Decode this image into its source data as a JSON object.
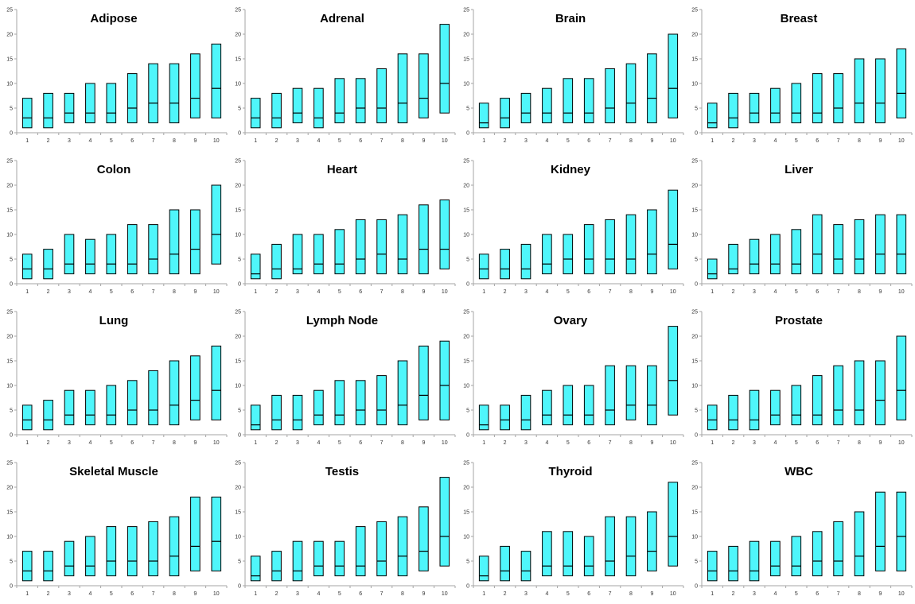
{
  "colors": {
    "box_fill": "#4ff6fb",
    "box_stroke": "#000000",
    "axis": "#a6a6a6"
  },
  "chart_data": [
    {
      "type": "box",
      "title": "Adipose",
      "categories": [
        "1",
        "2",
        "3",
        "4",
        "5",
        "6",
        "7",
        "8",
        "9",
        "10"
      ],
      "ylim": [
        0,
        25
      ],
      "yticks": [
        "0",
        "5",
        "10",
        "15",
        "20",
        "25"
      ],
      "low": [
        1,
        1,
        2,
        2,
        2,
        2,
        2,
        2,
        3,
        3
      ],
      "median": [
        3,
        3,
        4,
        4,
        4,
        5,
        6,
        6,
        7,
        9
      ],
      "high": [
        7,
        8,
        8,
        10,
        10,
        12,
        14,
        14,
        16,
        18
      ]
    },
    {
      "type": "box",
      "title": "Adrenal",
      "categories": [
        "1",
        "2",
        "3",
        "4",
        "5",
        "6",
        "7",
        "8",
        "9",
        "10"
      ],
      "ylim": [
        0,
        25
      ],
      "yticks": [
        "0",
        "5",
        "10",
        "15",
        "20",
        "25"
      ],
      "low": [
        1,
        1,
        2,
        1,
        2,
        2,
        2,
        2,
        3,
        4
      ],
      "median": [
        3,
        3,
        4,
        3,
        4,
        5,
        5,
        6,
        7,
        10
      ],
      "high": [
        7,
        8,
        9,
        9,
        11,
        11,
        13,
        16,
        16,
        22
      ]
    },
    {
      "type": "box",
      "title": "Brain",
      "categories": [
        "1",
        "2",
        "3",
        "4",
        "5",
        "6",
        "7",
        "8",
        "9",
        "10"
      ],
      "ylim": [
        0,
        25
      ],
      "yticks": [
        "0",
        "5",
        "10",
        "15",
        "20",
        "25"
      ],
      "low": [
        1,
        1,
        2,
        2,
        2,
        2,
        2,
        2,
        2,
        3
      ],
      "median": [
        2,
        3,
        4,
        4,
        4,
        4,
        5,
        6,
        7,
        9
      ],
      "high": [
        6,
        7,
        8,
        9,
        11,
        11,
        13,
        14,
        16,
        20
      ]
    },
    {
      "type": "box",
      "title": "Breast",
      "categories": [
        "1",
        "2",
        "3",
        "4",
        "5",
        "6",
        "7",
        "8",
        "9",
        "10"
      ],
      "ylim": [
        0,
        25
      ],
      "yticks": [
        "0",
        "5",
        "10",
        "15",
        "20",
        "25"
      ],
      "low": [
        1,
        1,
        2,
        2,
        2,
        2,
        2,
        2,
        2,
        3
      ],
      "median": [
        2,
        3,
        4,
        4,
        4,
        4,
        5,
        6,
        6,
        8
      ],
      "high": [
        6,
        8,
        8,
        9,
        10,
        12,
        12,
        15,
        15,
        17
      ]
    },
    {
      "type": "box",
      "title": "Colon",
      "categories": [
        "1",
        "2",
        "3",
        "4",
        "5",
        "6",
        "7",
        "8",
        "9",
        "10"
      ],
      "ylim": [
        0,
        25
      ],
      "yticks": [
        "0",
        "5",
        "10",
        "15",
        "20",
        "25"
      ],
      "low": [
        1,
        1,
        2,
        2,
        2,
        2,
        2,
        2,
        2,
        4
      ],
      "median": [
        3,
        3,
        4,
        4,
        4,
        4,
        5,
        6,
        7,
        10
      ],
      "high": [
        6,
        7,
        10,
        9,
        10,
        12,
        12,
        15,
        15,
        20
      ]
    },
    {
      "type": "box",
      "title": "Heart",
      "categories": [
        "1",
        "2",
        "3",
        "4",
        "5",
        "6",
        "7",
        "8",
        "9",
        "10"
      ],
      "ylim": [
        0,
        25
      ],
      "yticks": [
        "0",
        "5",
        "10",
        "15",
        "20",
        "25"
      ],
      "low": [
        1,
        1,
        2,
        2,
        2,
        2,
        2,
        2,
        2,
        3
      ],
      "median": [
        2,
        3,
        3,
        4,
        4,
        5,
        6,
        5,
        7,
        7
      ],
      "high": [
        6,
        8,
        10,
        10,
        11,
        13,
        13,
        14,
        16,
        17
      ]
    },
    {
      "type": "box",
      "title": "Kidney",
      "categories": [
        "1",
        "2",
        "3",
        "4",
        "5",
        "6",
        "7",
        "8",
        "9",
        "10"
      ],
      "ylim": [
        0,
        25
      ],
      "yticks": [
        "0",
        "5",
        "10",
        "15",
        "20",
        "25"
      ],
      "low": [
        1,
        1,
        1,
        2,
        2,
        2,
        2,
        2,
        2,
        3
      ],
      "median": [
        3,
        3,
        3,
        4,
        5,
        5,
        5,
        5,
        6,
        8
      ],
      "high": [
        6,
        7,
        8,
        10,
        10,
        12,
        13,
        14,
        15,
        19
      ]
    },
    {
      "type": "box",
      "title": "Liver",
      "categories": [
        "1",
        "2",
        "3",
        "4",
        "5",
        "6",
        "7",
        "8",
        "9",
        "10"
      ],
      "ylim": [
        0,
        25
      ],
      "yticks": [
        "0",
        "5",
        "10",
        "15",
        "20",
        "25"
      ],
      "low": [
        1,
        2,
        2,
        2,
        2,
        2,
        2,
        2,
        2,
        2
      ],
      "median": [
        2,
        3,
        4,
        4,
        4,
        6,
        5,
        5,
        6,
        6
      ],
      "high": [
        5,
        8,
        9,
        10,
        11,
        14,
        12,
        13,
        14,
        14
      ]
    },
    {
      "type": "box",
      "title": "Lung",
      "categories": [
        "1",
        "2",
        "3",
        "4",
        "5",
        "6",
        "7",
        "8",
        "9",
        "10"
      ],
      "ylim": [
        0,
        25
      ],
      "yticks": [
        "0",
        "5",
        "10",
        "15",
        "20",
        "25"
      ],
      "low": [
        1,
        1,
        2,
        2,
        2,
        2,
        2,
        2,
        3,
        3
      ],
      "median": [
        3,
        3,
        4,
        4,
        4,
        5,
        5,
        6,
        7,
        9
      ],
      "high": [
        6,
        7,
        9,
        9,
        10,
        11,
        13,
        15,
        16,
        18
      ]
    },
    {
      "type": "box",
      "title": "Lymph Node",
      "categories": [
        "1",
        "2",
        "3",
        "4",
        "5",
        "6",
        "7",
        "8",
        "9",
        "10"
      ],
      "ylim": [
        0,
        25
      ],
      "yticks": [
        "0",
        "5",
        "10",
        "15",
        "20",
        "25"
      ],
      "low": [
        1,
        1,
        1,
        2,
        2,
        2,
        2,
        2,
        3,
        3
      ],
      "median": [
        2,
        3,
        3,
        4,
        4,
        5,
        5,
        6,
        8,
        10
      ],
      "high": [
        6,
        8,
        8,
        9,
        11,
        11,
        12,
        15,
        18,
        19
      ]
    },
    {
      "type": "box",
      "title": "Ovary",
      "categories": [
        "1",
        "2",
        "3",
        "4",
        "5",
        "6",
        "7",
        "8",
        "9",
        "10"
      ],
      "ylim": [
        0,
        25
      ],
      "yticks": [
        "0",
        "5",
        "10",
        "15",
        "20",
        "25"
      ],
      "low": [
        1,
        1,
        1,
        2,
        2,
        2,
        2,
        3,
        2,
        4
      ],
      "median": [
        2,
        3,
        3,
        4,
        4,
        4,
        5,
        6,
        6,
        11
      ],
      "high": [
        6,
        6,
        8,
        9,
        10,
        10,
        14,
        14,
        14,
        22
      ]
    },
    {
      "type": "box",
      "title": "Prostate",
      "categories": [
        "1",
        "2",
        "3",
        "4",
        "5",
        "6",
        "7",
        "8",
        "9",
        "10"
      ],
      "ylim": [
        0,
        25
      ],
      "yticks": [
        "0",
        "5",
        "10",
        "15",
        "20",
        "25"
      ],
      "low": [
        1,
        1,
        1,
        2,
        2,
        2,
        2,
        2,
        2,
        3
      ],
      "median": [
        3,
        3,
        3,
        4,
        4,
        4,
        5,
        5,
        7,
        9
      ],
      "high": [
        6,
        8,
        9,
        9,
        10,
        12,
        14,
        15,
        15,
        20
      ]
    },
    {
      "type": "box",
      "title": "Skeletal Muscle",
      "categories": [
        "1",
        "2",
        "3",
        "4",
        "5",
        "6",
        "7",
        "8",
        "9",
        "10"
      ],
      "ylim": [
        0,
        25
      ],
      "yticks": [
        "0",
        "5",
        "10",
        "15",
        "20",
        "25"
      ],
      "low": [
        1,
        1,
        2,
        2,
        2,
        2,
        2,
        2,
        3,
        3
      ],
      "median": [
        3,
        3,
        4,
        4,
        5,
        5,
        5,
        6,
        8,
        9
      ],
      "high": [
        7,
        7,
        9,
        10,
        12,
        12,
        13,
        14,
        18,
        18
      ]
    },
    {
      "type": "box",
      "title": "Testis",
      "categories": [
        "1",
        "2",
        "3",
        "4",
        "5",
        "6",
        "7",
        "8",
        "9",
        "10"
      ],
      "ylim": [
        0,
        25
      ],
      "yticks": [
        "0",
        "5",
        "10",
        "15",
        "20",
        "25"
      ],
      "low": [
        1,
        1,
        1,
        2,
        2,
        2,
        2,
        2,
        3,
        4
      ],
      "median": [
        2,
        3,
        3,
        4,
        4,
        4,
        5,
        6,
        7,
        10
      ],
      "high": [
        6,
        7,
        9,
        9,
        9,
        12,
        13,
        14,
        16,
        22
      ]
    },
    {
      "type": "box",
      "title": "Thyroid",
      "categories": [
        "1",
        "2",
        "3",
        "4",
        "5",
        "6",
        "7",
        "8",
        "9",
        "10"
      ],
      "ylim": [
        0,
        25
      ],
      "yticks": [
        "0",
        "5",
        "10",
        "15",
        "20",
        "25"
      ],
      "low": [
        1,
        1,
        1,
        2,
        2,
        2,
        2,
        2,
        3,
        4
      ],
      "median": [
        2,
        3,
        3,
        4,
        4,
        4,
        5,
        6,
        7,
        10
      ],
      "high": [
        6,
        8,
        7,
        11,
        11,
        10,
        14,
        14,
        15,
        21
      ]
    },
    {
      "type": "box",
      "title": "WBC",
      "categories": [
        "1",
        "2",
        "3",
        "4",
        "5",
        "6",
        "7",
        "8",
        "9",
        "10"
      ],
      "ylim": [
        0,
        25
      ],
      "yticks": [
        "0",
        "5",
        "10",
        "15",
        "20",
        "25"
      ],
      "low": [
        1,
        1,
        1,
        2,
        2,
        2,
        2,
        2,
        3,
        3
      ],
      "median": [
        3,
        3,
        3,
        4,
        4,
        5,
        5,
        6,
        8,
        10
      ],
      "high": [
        7,
        8,
        9,
        9,
        10,
        11,
        13,
        15,
        19,
        19
      ]
    }
  ]
}
